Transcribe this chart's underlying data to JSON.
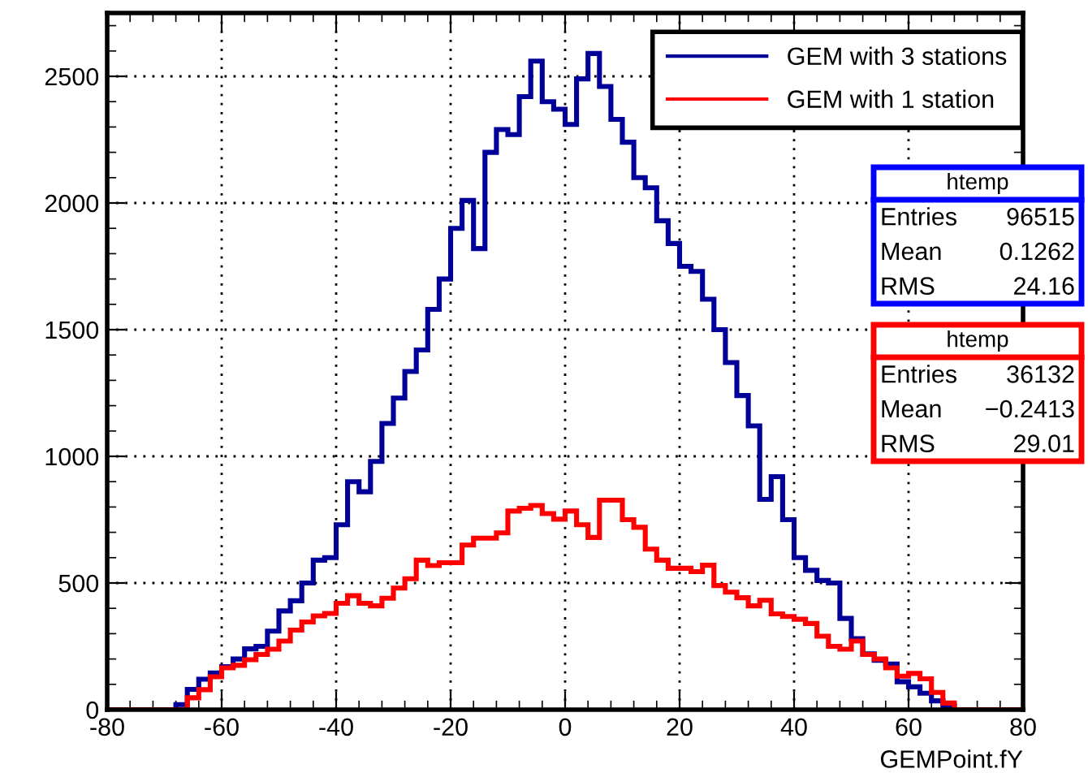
{
  "chart_data": {
    "type": "histogram",
    "xlabel": "GEMPoint.fY",
    "bins": [
      -80,
      -78,
      -76,
      -74,
      -72,
      -70,
      -68,
      -66,
      -64,
      -62,
      -60,
      -58,
      -56,
      -54,
      -52,
      -50,
      -48,
      -46,
      -44,
      -42,
      -40,
      -38,
      -36,
      -34,
      -32,
      -30,
      -28,
      -26,
      -24,
      -22,
      -20,
      -18,
      -16,
      -14,
      -12,
      -10,
      -8,
      -6,
      -4,
      -2,
      0,
      2,
      4,
      6,
      8,
      10,
      12,
      14,
      16,
      18,
      20,
      22,
      24,
      26,
      28,
      30,
      32,
      34,
      36,
      38,
      40,
      42,
      44,
      46,
      48,
      50,
      52,
      54,
      56,
      58,
      60,
      62,
      64,
      66,
      68,
      70,
      72,
      74,
      76,
      78,
      80
    ],
    "series": [
      {
        "name": "GEM with 3 stations",
        "color": "#000099",
        "values": [
          0,
          0,
          0,
          0,
          0,
          0,
          20,
          80,
          120,
          145,
          170,
          200,
          240,
          250,
          310,
          390,
          430,
          500,
          590,
          600,
          730,
          900,
          860,
          980,
          1130,
          1230,
          1335,
          1420,
          1580,
          1700,
          1900,
          2010,
          1820,
          2200,
          2290,
          2270,
          2420,
          2560,
          2400,
          2370,
          2310,
          2490,
          2590,
          2460,
          2330,
          2240,
          2100,
          2060,
          1930,
          1840,
          1750,
          1730,
          1620,
          1500,
          1370,
          1240,
          1120,
          830,
          920,
          750,
          600,
          550,
          510,
          500,
          360,
          280,
          220,
          195,
          180,
          110,
          90,
          65,
          35,
          15,
          0,
          0,
          0,
          0,
          0,
          0
        ]
      },
      {
        "name": "GEM with 1 station",
        "color": "#ff0000",
        "values": [
          0,
          0,
          0,
          0,
          0,
          0,
          0,
          47,
          79,
          130,
          165,
          175,
          197,
          218,
          239,
          271,
          314,
          346,
          370,
          380,
          420,
          450,
          420,
          410,
          440,
          480,
          517,
          590,
          569,
          580,
          580,
          650,
          677,
          677,
          698,
          784,
          795,
          806,
          774,
          752,
          784,
          730,
          680,
          827,
          827,
          750,
          720,
          634,
          590,
          558,
          558,
          545,
          570,
          490,
          464,
          442,
          410,
          432,
          378,
          368,
          357,
          340,
          290,
          250,
          239,
          271,
          218,
          200,
          165,
          132,
          143,
          122,
          68,
          26,
          0,
          0,
          0,
          0,
          0,
          0
        ]
      }
    ],
    "xlim": [
      -80,
      80
    ],
    "ylim": [
      0,
      2750
    ],
    "xticks": [
      -80,
      -60,
      -40,
      -20,
      0,
      20,
      40,
      60,
      80
    ],
    "yticks": [
      0,
      500,
      1000,
      1500,
      2000,
      2500
    ],
    "grid": true,
    "legend": "top right",
    "annotations": [
      "htemp",
      "Entries",
      "96515",
      "Mean",
      "0.1262",
      "RMS",
      "24.16",
      "htemp",
      "Entries",
      "36132",
      "Mean",
      "−0.2413",
      "RMS",
      "29.01"
    ]
  }
}
